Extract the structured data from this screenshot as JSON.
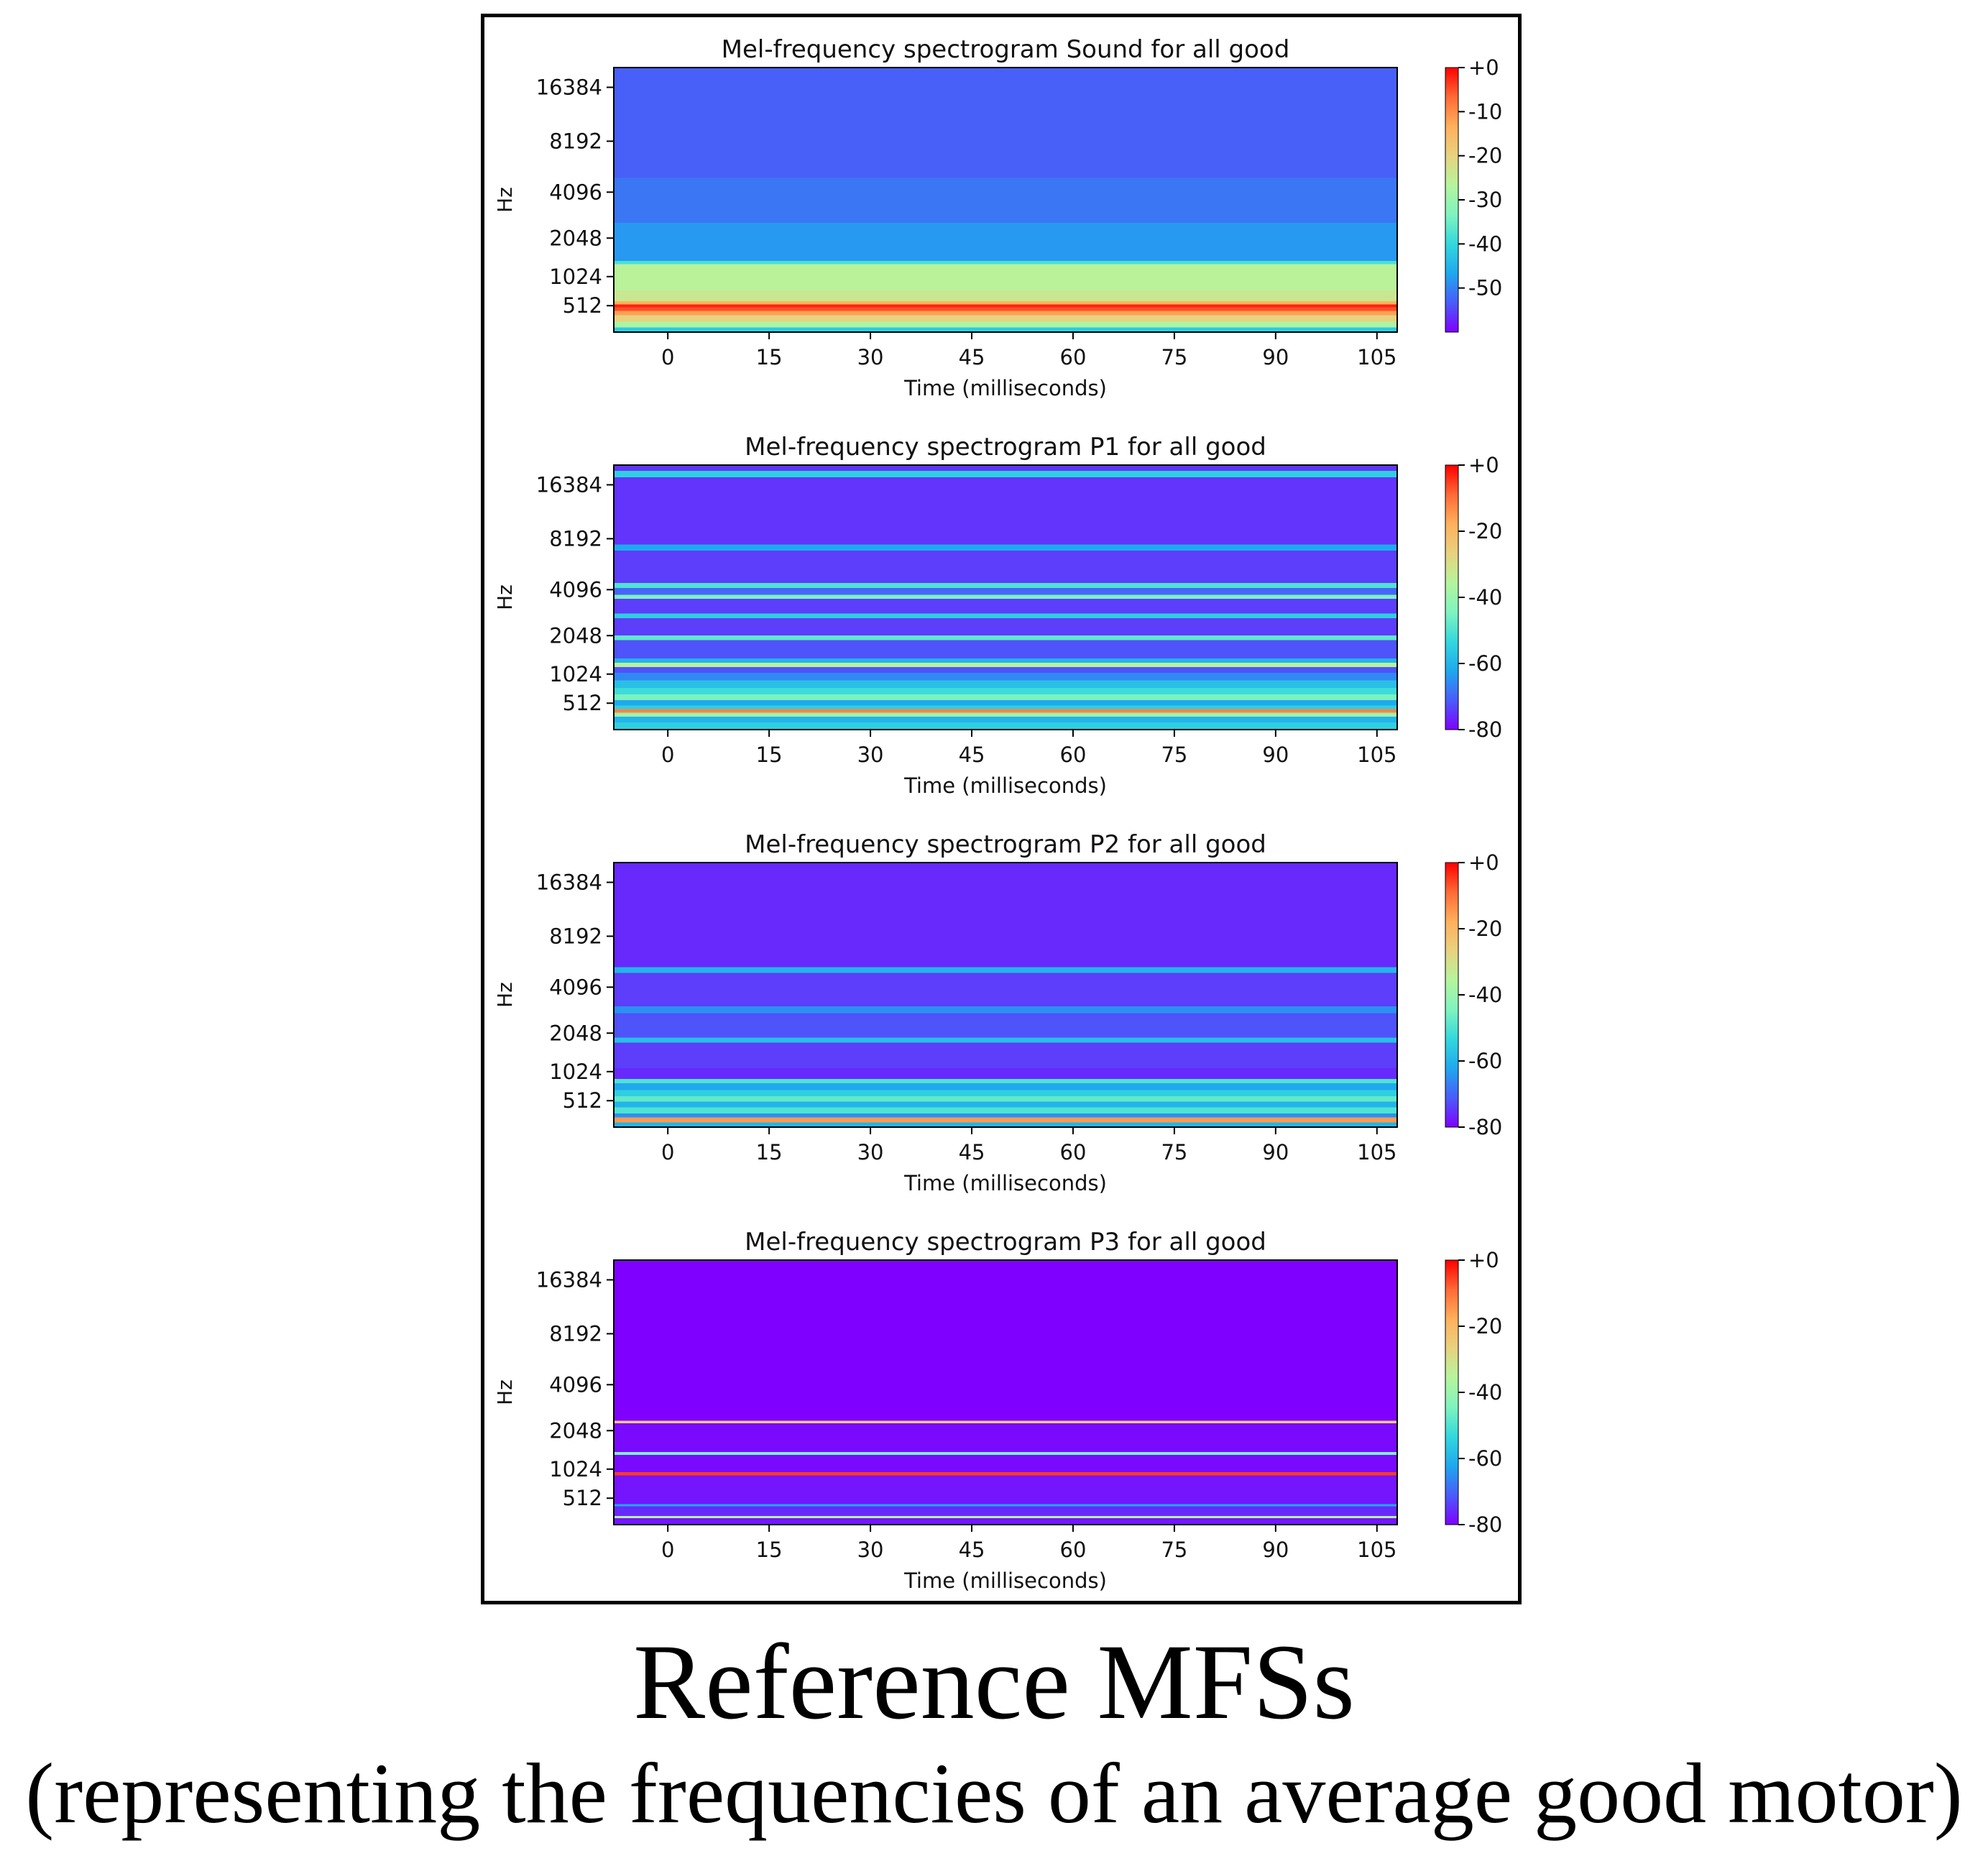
{
  "caption": {
    "title": "Reference MFSs",
    "subtitle": "(representing the frequencies of an average good motor)"
  },
  "colors": {
    "colormap": [
      "#8000ff",
      "#4a5cf9",
      "#1fa8ee",
      "#33d8dd",
      "#7ff4bf",
      "#b5f59c",
      "#e8d27f",
      "#ffb05c",
      "#ff6a36",
      "#ff0000"
    ]
  },
  "chart_data": [
    {
      "type": "heatmap",
      "title": "Mel-frequency spectrogram Sound for all good",
      "xlabel": "Time (milliseconds)",
      "ylabel": "Hz",
      "x_ticks": [
        0,
        15,
        30,
        45,
        60,
        75,
        90,
        105
      ],
      "y_ticks": [
        512,
        1024,
        2048,
        4096,
        8192,
        16384
      ],
      "xlim": [
        -8,
        108
      ],
      "ylim": [
        180,
        21000
      ],
      "y_scale": "mel",
      "colorbar": {
        "range": [
          -60,
          0
        ],
        "ticks": [
          0,
          -10,
          -20,
          -30,
          -40,
          -50
        ],
        "tick_labels": [
          "+0",
          "-10",
          "-20",
          "-30",
          "-40",
          "-50"
        ]
      },
      "bands": [
        {
          "lo": 180,
          "hi": 230,
          "db": -42
        },
        {
          "lo": 230,
          "hi": 300,
          "db": -28
        },
        {
          "lo": 300,
          "hi": 380,
          "db": -20
        },
        {
          "lo": 380,
          "hi": 440,
          "db": -12
        },
        {
          "lo": 440,
          "hi": 490,
          "db": -5
        },
        {
          "lo": 490,
          "hi": 530,
          "db": -2
        },
        {
          "lo": 530,
          "hi": 580,
          "db": -14
        },
        {
          "lo": 580,
          "hi": 760,
          "db": -24
        },
        {
          "lo": 760,
          "hi": 1300,
          "db": -26
        },
        {
          "lo": 1300,
          "hi": 1380,
          "db": -38
        },
        {
          "lo": 1380,
          "hi": 2600,
          "db": -48
        },
        {
          "lo": 2600,
          "hi": 5000,
          "db": -51
        },
        {
          "lo": 5000,
          "hi": 21000,
          "db": -53
        }
      ]
    },
    {
      "type": "heatmap",
      "title": "Mel-frequency spectrogram P1 for all good",
      "xlabel": "Time (milliseconds)",
      "ylabel": "Hz",
      "x_ticks": [
        0,
        15,
        30,
        45,
        60,
        75,
        90,
        105
      ],
      "y_ticks": [
        512,
        1024,
        2048,
        4096,
        8192,
        16384
      ],
      "xlim": [
        -8,
        108
      ],
      "ylim": [
        180,
        21000
      ],
      "y_scale": "mel",
      "colorbar": {
        "range": [
          -80,
          0
        ],
        "ticks": [
          0,
          -20,
          -40,
          -60,
          -80
        ],
        "tick_labels": [
          "+0",
          "-20",
          "-40",
          "-60",
          "-80"
        ]
      },
      "bands": [
        {
          "lo": 180,
          "hi": 260,
          "db": -55
        },
        {
          "lo": 260,
          "hi": 330,
          "db": -60
        },
        {
          "lo": 330,
          "hi": 380,
          "db": -40
        },
        {
          "lo": 380,
          "hi": 430,
          "db": -12
        },
        {
          "lo": 430,
          "hi": 480,
          "db": -55
        },
        {
          "lo": 480,
          "hi": 560,
          "db": -62
        },
        {
          "lo": 560,
          "hi": 650,
          "db": -45
        },
        {
          "lo": 650,
          "hi": 760,
          "db": -52
        },
        {
          "lo": 760,
          "hi": 900,
          "db": -58
        },
        {
          "lo": 900,
          "hi": 1050,
          "db": -66
        },
        {
          "lo": 1050,
          "hi": 1180,
          "db": -72
        },
        {
          "lo": 1180,
          "hi": 1280,
          "db": -35
        },
        {
          "lo": 1280,
          "hi": 1380,
          "db": -60
        },
        {
          "lo": 1380,
          "hi": 1900,
          "db": -72
        },
        {
          "lo": 1900,
          "hi": 2050,
          "db": -48
        },
        {
          "lo": 2050,
          "hi": 2700,
          "db": -74
        },
        {
          "lo": 2700,
          "hi": 2900,
          "db": -55
        },
        {
          "lo": 2900,
          "hi": 3600,
          "db": -74
        },
        {
          "lo": 3600,
          "hi": 3800,
          "db": -45
        },
        {
          "lo": 3800,
          "hi": 4200,
          "db": -70
        },
        {
          "lo": 4200,
          "hi": 4500,
          "db": -50
        },
        {
          "lo": 4500,
          "hi": 7000,
          "db": -74
        },
        {
          "lo": 7000,
          "hi": 7600,
          "db": -62
        },
        {
          "lo": 7600,
          "hi": 18000,
          "db": -75
        },
        {
          "lo": 18000,
          "hi": 19500,
          "db": -55
        },
        {
          "lo": 19500,
          "hi": 21000,
          "db": -75
        }
      ]
    },
    {
      "type": "heatmap",
      "title": "Mel-frequency spectrogram P2 for all good",
      "xlabel": "Time (milliseconds)",
      "ylabel": "Hz",
      "x_ticks": [
        0,
        15,
        30,
        45,
        60,
        75,
        90,
        105
      ],
      "y_ticks": [
        512,
        1024,
        2048,
        4096,
        8192,
        16384
      ],
      "xlim": [
        -8,
        108
      ],
      "ylim": [
        180,
        21000
      ],
      "y_scale": "mel",
      "colorbar": {
        "range": [
          -80,
          0
        ],
        "ticks": [
          0,
          -20,
          -40,
          -60,
          -80
        ],
        "tick_labels": [
          "+0",
          "-20",
          "-40",
          "-60",
          "-80"
        ]
      },
      "bands": [
        {
          "lo": 180,
          "hi": 230,
          "db": -60
        },
        {
          "lo": 230,
          "hi": 290,
          "db": -15
        },
        {
          "lo": 290,
          "hi": 340,
          "db": -65
        },
        {
          "lo": 340,
          "hi": 420,
          "db": -50
        },
        {
          "lo": 420,
          "hi": 500,
          "db": -60
        },
        {
          "lo": 500,
          "hi": 580,
          "db": -48
        },
        {
          "lo": 580,
          "hi": 680,
          "db": -55
        },
        {
          "lo": 680,
          "hi": 800,
          "db": -62
        },
        {
          "lo": 800,
          "hi": 880,
          "db": -50
        },
        {
          "lo": 880,
          "hi": 1100,
          "db": -76
        },
        {
          "lo": 1100,
          "hi": 1750,
          "db": -74
        },
        {
          "lo": 1750,
          "hi": 1900,
          "db": -58
        },
        {
          "lo": 1900,
          "hi": 2800,
          "db": -72
        },
        {
          "lo": 2800,
          "hi": 3100,
          "db": -65
        },
        {
          "lo": 3100,
          "hi": 5000,
          "db": -74
        },
        {
          "lo": 5000,
          "hi": 5400,
          "db": -60
        },
        {
          "lo": 5400,
          "hi": 21000,
          "db": -76
        }
      ]
    },
    {
      "type": "heatmap",
      "title": "Mel-frequency spectrogram P3 for all good",
      "xlabel": "Time (milliseconds)",
      "ylabel": "Hz",
      "x_ticks": [
        0,
        15,
        30,
        45,
        60,
        75,
        90,
        105
      ],
      "y_ticks": [
        512,
        1024,
        2048,
        4096,
        8192,
        16384
      ],
      "xlim": [
        -8,
        108
      ],
      "ylim": [
        180,
        21000
      ],
      "y_scale": "mel",
      "colorbar": {
        "range": [
          -80,
          0
        ],
        "ticks": [
          0,
          -20,
          -40,
          -60,
          -80
        ],
        "tick_labels": [
          "+0",
          "-20",
          "-40",
          "-60",
          "-80"
        ]
      },
      "bands": [
        {
          "lo": 180,
          "hi": 250,
          "db": -78
        },
        {
          "lo": 250,
          "hi": 275,
          "db": -35
        },
        {
          "lo": 275,
          "hi": 400,
          "db": -76
        },
        {
          "lo": 400,
          "hi": 430,
          "db": -62
        },
        {
          "lo": 430,
          "hi": 900,
          "db": -78
        },
        {
          "lo": 900,
          "hi": 960,
          "db": -5
        },
        {
          "lo": 960,
          "hi": 1350,
          "db": -79
        },
        {
          "lo": 1350,
          "hi": 1420,
          "db": -45
        },
        {
          "lo": 1420,
          "hi": 2300,
          "db": -79
        },
        {
          "lo": 2300,
          "hi": 2400,
          "db": -25
        },
        {
          "lo": 2400,
          "hi": 21000,
          "db": -80
        }
      ]
    }
  ]
}
